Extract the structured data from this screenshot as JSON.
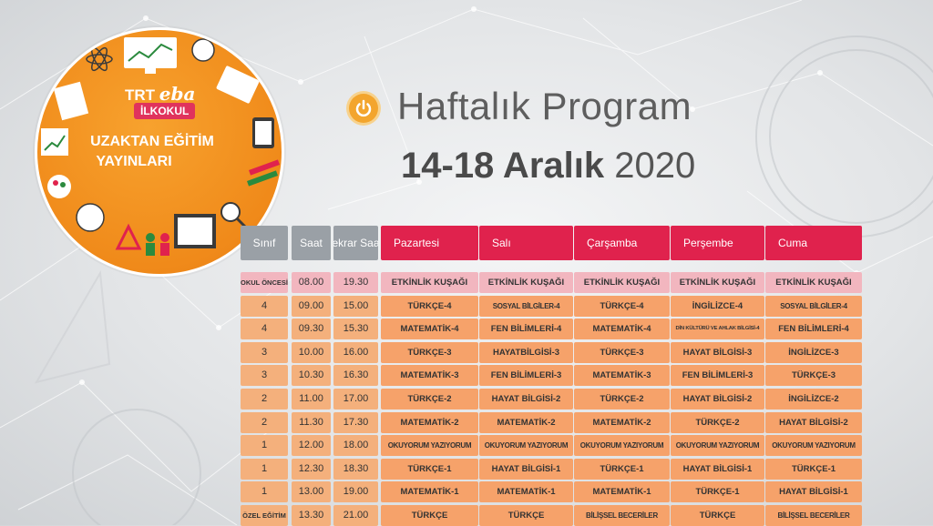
{
  "logo": {
    "brand_trt": "TRT",
    "brand_eba": "eba",
    "badge": "İLKOKUL",
    "line1": "UZAKTAN EĞİTİM",
    "line2": "YAYINLARI"
  },
  "header": {
    "title": "Haftalık Program",
    "date_bold": "14-18 Aralık",
    "date_year": "2020"
  },
  "colors": {
    "accent": "#e0224d",
    "orange": "#f6a26a",
    "header_gray": "#9aa0a6",
    "first_row_pink": "#f2b6bf"
  },
  "table": {
    "columns": [
      "Sınıf",
      "Saat",
      "Tekrar Saati",
      "Pazartesi",
      "Salı",
      "Çarşamba",
      "Perşembe",
      "Cuma"
    ],
    "rows": [
      [
        "OKUL ÖNCESİ",
        "08.00",
        "19.30",
        "ETKİNLİK KUŞAĞI",
        "ETKİNLİK KUŞAĞI",
        "ETKİNLİK KUŞAĞI",
        "ETKİNLİK KUŞAĞI",
        "ETKİNLİK KUŞAĞI"
      ],
      [
        "4",
        "09.00",
        "15.00",
        "TÜRKÇE-4",
        "SOSYAL BİLGİLER-4",
        "TÜRKÇE-4",
        "İNGİLİZCE-4",
        "SOSYAL BİLGİLER-4"
      ],
      [
        "4",
        "09.30",
        "15.30",
        "MATEMATİK-4",
        "FEN BİLİMLERİ-4",
        "MATEMATİK-4",
        "DİN KÜLTÜRÜ VE AHLAK BİLGİSİ-4",
        "FEN BİLİMLERİ-4"
      ],
      [
        "3",
        "10.00",
        "16.00",
        "TÜRKÇE-3",
        "HAYATBİLGİSİ-3",
        "TÜRKÇE-3",
        "HAYAT BİLGİSİ-3",
        "İNGİLİZCE-3"
      ],
      [
        "3",
        "10.30",
        "16.30",
        "MATEMATİK-3",
        "FEN BİLİMLERİ-3",
        "MATEMATİK-3",
        "FEN BİLİMLERİ-3",
        "TÜRKÇE-3"
      ],
      [
        "2",
        "11.00",
        "17.00",
        "TÜRKÇE-2",
        "HAYAT BİLGİSİ-2",
        "TÜRKÇE-2",
        "HAYAT BİLGİSİ-2",
        "İNGİLİZCE-2"
      ],
      [
        "2",
        "11.30",
        "17.30",
        "MATEMATİK-2",
        "MATEMATİK-2",
        "MATEMATİK-2",
        "TÜRKÇE-2",
        "HAYAT BİLGİSİ-2"
      ],
      [
        "1",
        "12.00",
        "18.00",
        "OKUYORUM YAZIYORUM",
        "OKUYORUM YAZIYORUM",
        "OKUYORUM YAZIYORUM",
        "OKUYORUM YAZIYORUM",
        "OKUYORUM YAZIYORUM"
      ],
      [
        "1",
        "12.30",
        "18.30",
        "TÜRKÇE-1",
        "HAYAT BİLGİSİ-1",
        "TÜRKÇE-1",
        "HAYAT BİLGİSİ-1",
        "TÜRKÇE-1"
      ],
      [
        "1",
        "13.00",
        "19.00",
        "MATEMATİK-1",
        "MATEMATİK-1",
        "MATEMATİK-1",
        "TÜRKÇE-1",
        "HAYAT BİLGİSİ-1"
      ],
      [
        "ÖZEL EĞİTİM",
        "13.30",
        "21.00",
        "TÜRKÇE",
        "TÜRKÇE",
        "BİLİŞSEL BECERİLER",
        "TÜRKÇE",
        "BİLİŞSEL BECERİLER"
      ]
    ]
  }
}
